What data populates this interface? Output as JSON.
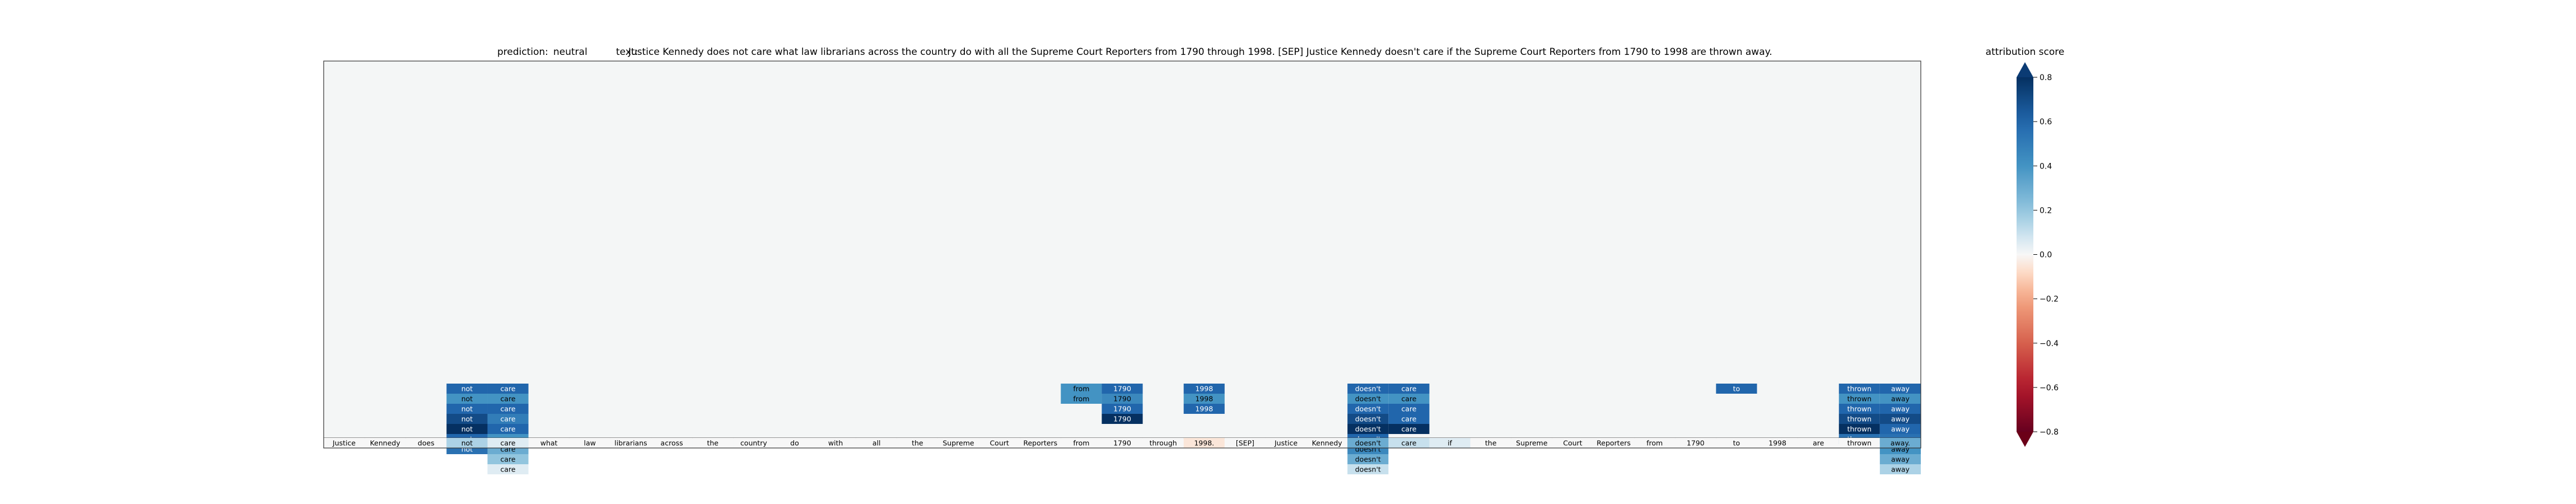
{
  "title": {
    "prediction_label": "prediction:",
    "prediction": "neutral",
    "text_label": "text:",
    "text": "Justice Kennedy does not care what law librarians across the country do with all the Supreme Court Reporters from 1790 through 1998. [SEP] Justice Kennedy doesn't care if the Supreme Court Reporters from 1790 to 1998 are thrown away."
  },
  "colorbar": {
    "label": "attribution score",
    "ticks": [
      "0.8",
      "0.6",
      "0.4",
      "0.2",
      "0.0",
      "−0.2",
      "−0.4",
      "−0.6",
      "−0.8"
    ],
    "tick_values": [
      0.8,
      0.6,
      0.4,
      0.2,
      0.0,
      -0.2,
      -0.4,
      -0.6,
      -0.8
    ]
  },
  "colors": {
    "background": "#f4f6f6",
    "axes_edge": "#333333",
    "positive_max": "#0b3b74",
    "neutral": "#f7f7f7",
    "negative_max": "#6b0018"
  },
  "chart_data": {
    "type": "heatmap",
    "colormap": "RdBu",
    "vmin": -0.8,
    "vmax": 0.8,
    "rows": 40,
    "tokens": [
      "Justice",
      "Kennedy",
      "does",
      "not",
      "care",
      "what",
      "law",
      "librarians",
      "across",
      "the",
      "country",
      "do",
      "with",
      "all",
      "the",
      "Supreme",
      "Court",
      "Reporters",
      "from",
      "1790",
      "through",
      "1998.",
      "[SEP]",
      "Justice",
      "Kennedy",
      "doesn't",
      "care",
      "if",
      "the",
      "Supreme",
      "Court",
      "Reporters",
      "from",
      "1790",
      "to",
      "1998",
      "are",
      "thrown",
      "away."
    ],
    "token_row_scores": [
      0.0,
      0.0,
      0.0,
      0.15,
      0.05,
      0.0,
      0.0,
      0.0,
      0.0,
      0.0,
      0.0,
      0.0,
      0.0,
      0.0,
      0.0,
      0.0,
      0.0,
      0.0,
      0.0,
      0.0,
      0.0,
      -0.05,
      0.0,
      0.0,
      0.0,
      0.3,
      0.1,
      0.05,
      0.0,
      0.0,
      0.0,
      0.0,
      0.0,
      0.0,
      0.0,
      0.0,
      0.0,
      0.0,
      0.3
    ],
    "cells": [
      {
        "col": 3,
        "row": 32,
        "label": "not",
        "value": 0.6
      },
      {
        "col": 3,
        "row": 33,
        "label": "not",
        "value": 0.4
      },
      {
        "col": 3,
        "row": 34,
        "label": "not",
        "value": 0.6
      },
      {
        "col": 3,
        "row": 35,
        "label": "not",
        "value": 0.7
      },
      {
        "col": 3,
        "row": 36,
        "label": "not",
        "value": 0.8
      },
      {
        "col": 3,
        "row": 37,
        "label": "not",
        "value": 0.6
      },
      {
        "col": 3,
        "row": 38,
        "label": "not",
        "value": 0.55
      },
      {
        "col": 4,
        "row": 32,
        "label": "care",
        "value": 0.6
      },
      {
        "col": 4,
        "row": 33,
        "label": "care",
        "value": 0.4
      },
      {
        "col": 4,
        "row": 34,
        "label": "care",
        "value": 0.6
      },
      {
        "col": 4,
        "row": 35,
        "label": "care",
        "value": 0.5
      },
      {
        "col": 4,
        "row": 36,
        "label": "care",
        "value": 0.6
      },
      {
        "col": 4,
        "row": 37,
        "label": "care",
        "value": 0.4
      },
      {
        "col": 4,
        "row": 38,
        "label": "care",
        "value": 0.3
      },
      {
        "col": 4,
        "row": 39,
        "label": "care",
        "value": 0.2
      },
      {
        "col": 4,
        "row": 40,
        "label": "care",
        "value": 0.05
      },
      {
        "col": 18,
        "row": 32,
        "label": "from",
        "value": 0.4
      },
      {
        "col": 18,
        "row": 33,
        "label": "from",
        "value": 0.4
      },
      {
        "col": 19,
        "row": 32,
        "label": "1790",
        "value": 0.6
      },
      {
        "col": 19,
        "row": 33,
        "label": "1790",
        "value": 0.45
      },
      {
        "col": 19,
        "row": 34,
        "label": "1790",
        "value": 0.6
      },
      {
        "col": 19,
        "row": 35,
        "label": "1790",
        "value": 0.8
      },
      {
        "col": 21,
        "row": 32,
        "label": "1998",
        "value": 0.6
      },
      {
        "col": 21,
        "row": 33,
        "label": "1998",
        "value": 0.4
      },
      {
        "col": 21,
        "row": 34,
        "label": "1998",
        "value": 0.6
      },
      {
        "col": 25,
        "row": 32,
        "label": "doesn't",
        "value": 0.6
      },
      {
        "col": 25,
        "row": 33,
        "label": "doesn't",
        "value": 0.4
      },
      {
        "col": 25,
        "row": 34,
        "label": "doesn't",
        "value": 0.6
      },
      {
        "col": 25,
        "row": 35,
        "label": "doesn't",
        "value": 0.7
      },
      {
        "col": 25,
        "row": 36,
        "label": "doesn't",
        "value": 0.8
      },
      {
        "col": 25,
        "row": 37,
        "label": "doesn't",
        "value": 0.6
      },
      {
        "col": 25,
        "row": 38,
        "label": "doesn't",
        "value": 0.45
      },
      {
        "col": 25,
        "row": 39,
        "label": "doesn't",
        "value": 0.3
      },
      {
        "col": 25,
        "row": 40,
        "label": "doesn't",
        "value": 0.1
      },
      {
        "col": 26,
        "row": 32,
        "label": "care",
        "value": 0.6
      },
      {
        "col": 26,
        "row": 33,
        "label": "care",
        "value": 0.4
      },
      {
        "col": 26,
        "row": 34,
        "label": "care",
        "value": 0.6
      },
      {
        "col": 26,
        "row": 35,
        "label": "care",
        "value": 0.6
      },
      {
        "col": 26,
        "row": 36,
        "label": "care",
        "value": 0.8
      },
      {
        "col": 34,
        "row": 32,
        "label": "to",
        "value": 0.6
      },
      {
        "col": 37,
        "row": 32,
        "label": "thrown",
        "value": 0.6
      },
      {
        "col": 37,
        "row": 33,
        "label": "thrown",
        "value": 0.4
      },
      {
        "col": 37,
        "row": 34,
        "label": "thrown",
        "value": 0.6
      },
      {
        "col": 37,
        "row": 35,
        "label": "thrown",
        "value": 0.7
      },
      {
        "col": 37,
        "row": 36,
        "label": "thrown",
        "value": 0.8
      },
      {
        "col": 37,
        "row": 37,
        "label": "thrown",
        "value": 0.55
      },
      {
        "col": 38,
        "row": 32,
        "label": "away",
        "value": 0.6
      },
      {
        "col": 38,
        "row": 33,
        "label": "away",
        "value": 0.4
      },
      {
        "col": 38,
        "row": 34,
        "label": "away",
        "value": 0.6
      },
      {
        "col": 38,
        "row": 35,
        "label": "away",
        "value": 0.7
      },
      {
        "col": 38,
        "row": 36,
        "label": "away",
        "value": 0.6
      },
      {
        "col": 38,
        "row": 37,
        "label": "away",
        "value": 0.55
      },
      {
        "col": 38,
        "row": 38,
        "label": "away",
        "value": 0.4
      },
      {
        "col": 38,
        "row": 39,
        "label": "away",
        "value": 0.3
      },
      {
        "col": 38,
        "row": 40,
        "label": "away",
        "value": 0.15
      }
    ]
  }
}
